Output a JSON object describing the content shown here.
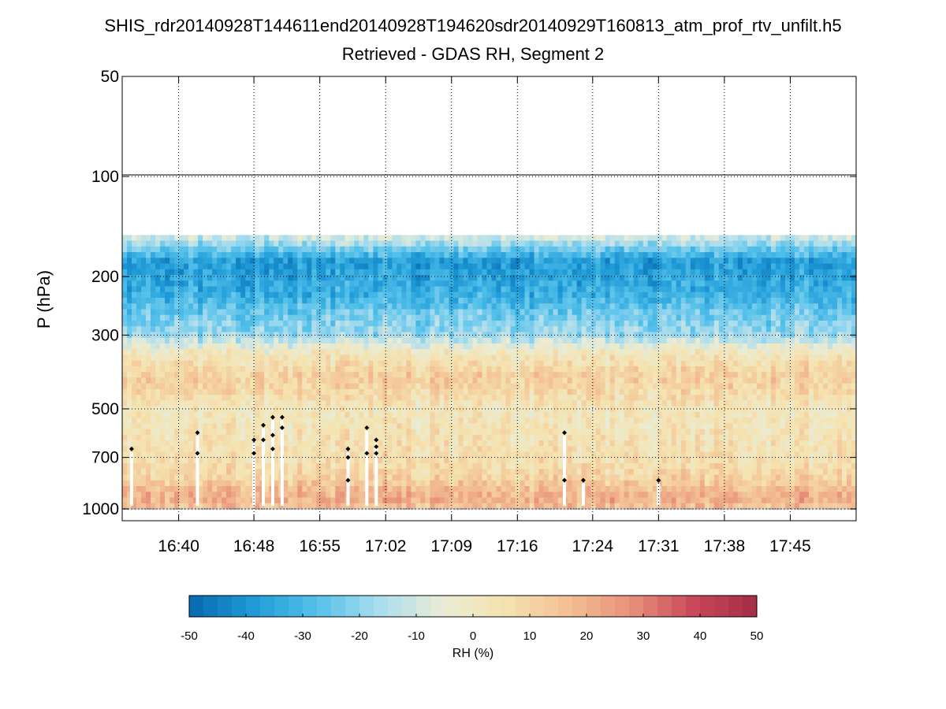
{
  "title": "SHIS_rdr20140928T144611end20140928T194620sdr20140929T160813_atm_prof_rtv_unfilt.h5",
  "subtitle": "Retrieved - GDAS RH, Segment 2",
  "colors": {
    "colormap": [
      "#0868b0",
      "#1f9ad6",
      "#52c0ea",
      "#a9dcee",
      "#e9ecd6",
      "#f5e3b0",
      "#f3c094",
      "#e8907a",
      "#c9485a",
      "#a42c46"
    ],
    "point_marker": "#000000"
  },
  "chart_data": {
    "type": "heatmap",
    "title": "SHIS_rdr20140928T144611end20140928T194620sdr20140929T160813_atm_prof_rtv_unfilt.h5",
    "subtitle": "Retrieved - GDAS RH, Segment 2",
    "xlabel": "",
    "ylabel": "P (hPa)",
    "y_scale": "log",
    "y_reversed": true,
    "ylim": [
      50,
      1000
    ],
    "xlim": [
      "16:34",
      "17:52"
    ],
    "x_ticks": [
      "16:40",
      "16:48",
      "16:55",
      "17:02",
      "17:09",
      "17:16",
      "17:24",
      "17:31",
      "17:38",
      "17:45"
    ],
    "y_ticks": [
      50,
      100,
      200,
      300,
      500,
      700,
      1000
    ],
    "grid": true,
    "data_top_pressure": 150,
    "colorbar": {
      "label": "RH (%)",
      "range": [
        -50,
        50
      ],
      "ticks": [
        -50,
        -40,
        -30,
        -20,
        -10,
        0,
        10,
        20,
        30,
        40,
        50
      ]
    },
    "mean_rh_profile": [
      {
        "p": 150,
        "rh": -8
      },
      {
        "p": 180,
        "rh": -38
      },
      {
        "p": 200,
        "rh": -36
      },
      {
        "p": 230,
        "rh": -32
      },
      {
        "p": 260,
        "rh": -24
      },
      {
        "p": 300,
        "rh": -18
      },
      {
        "p": 340,
        "rh": 2
      },
      {
        "p": 400,
        "rh": 12
      },
      {
        "p": 450,
        "rh": 8
      },
      {
        "p": 500,
        "rh": 2
      },
      {
        "p": 600,
        "rh": 4
      },
      {
        "p": 700,
        "rh": 6
      },
      {
        "p": 800,
        "rh": 10
      },
      {
        "p": 880,
        "rh": 18
      },
      {
        "p": 950,
        "rh": 20
      },
      {
        "p": 1000,
        "rh": 14
      }
    ],
    "cloud_markers": [
      {
        "time": "16:35",
        "p": 660
      },
      {
        "time": "16:42",
        "p": 590
      },
      {
        "time": "16:42",
        "p": 680
      },
      {
        "time": "16:48",
        "p": 680
      },
      {
        "time": "16:48",
        "p": 620
      },
      {
        "time": "16:49",
        "p": 620
      },
      {
        "time": "16:49",
        "p": 560
      },
      {
        "time": "16:50",
        "p": 600
      },
      {
        "time": "16:50",
        "p": 660
      },
      {
        "time": "16:50",
        "p": 530
      },
      {
        "time": "16:51",
        "p": 570
      },
      {
        "time": "16:51",
        "p": 530
      },
      {
        "time": "16:58",
        "p": 820
      },
      {
        "time": "16:58",
        "p": 700
      },
      {
        "time": "16:58",
        "p": 660
      },
      {
        "time": "17:00",
        "p": 570
      },
      {
        "time": "17:00",
        "p": 680
      },
      {
        "time": "17:01",
        "p": 680
      },
      {
        "time": "17:01",
        "p": 650
      },
      {
        "time": "17:01",
        "p": 620
      },
      {
        "time": "17:21",
        "p": 590
      },
      {
        "time": "17:21",
        "p": 820
      },
      {
        "time": "17:23",
        "p": 820
      },
      {
        "time": "17:31",
        "p": 820
      }
    ]
  }
}
